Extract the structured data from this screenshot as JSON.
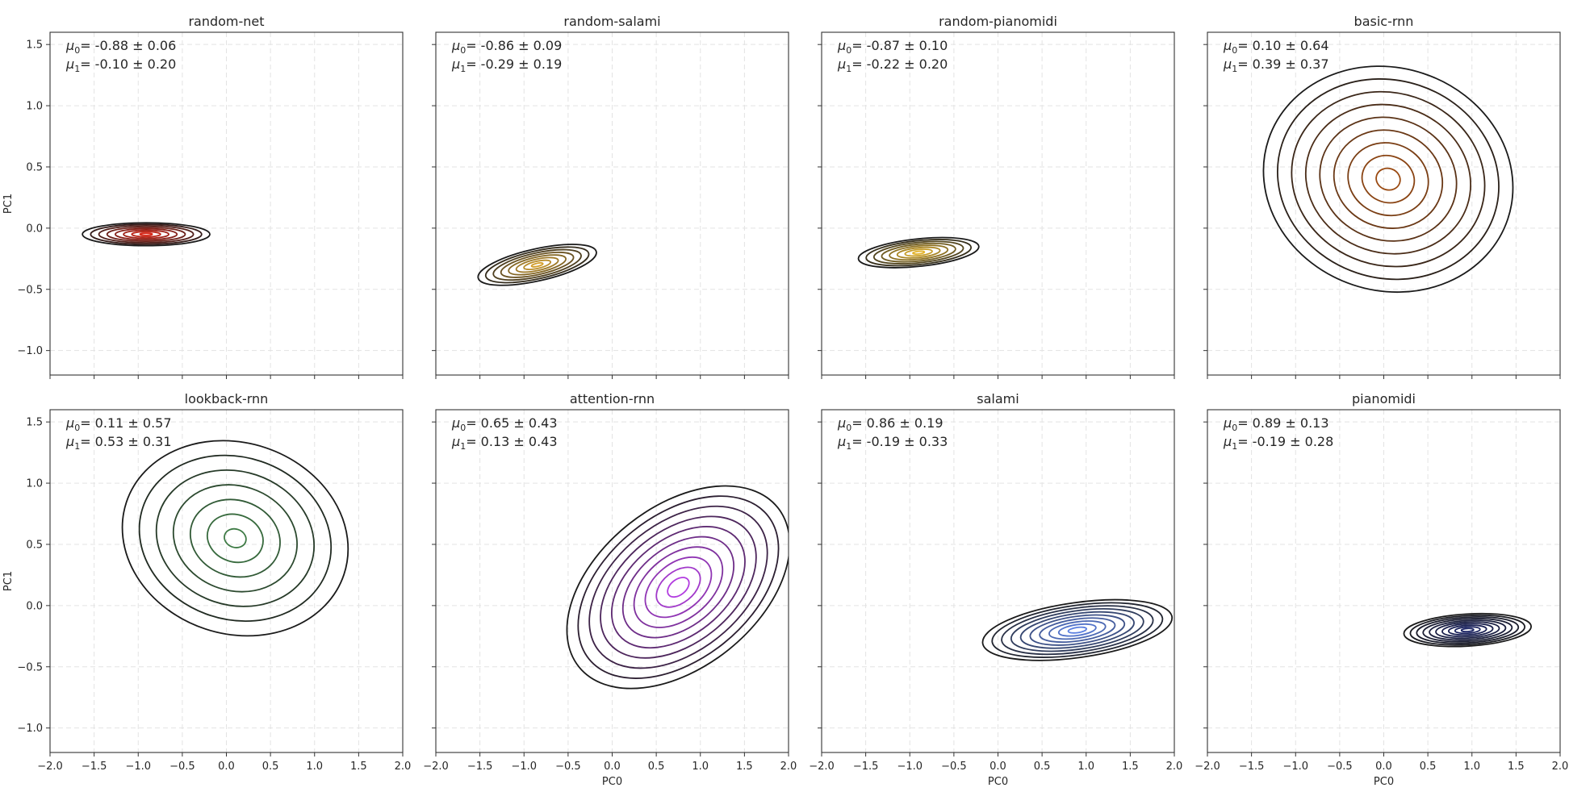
{
  "chart_data": [
    {
      "type": "contour",
      "title": "random-net",
      "xlabel": "",
      "ylabel": "PC1",
      "xlim": [
        -2.0,
        2.0
      ],
      "ylim": [
        -1.2,
        1.6
      ],
      "xticks": [],
      "yticks": [
        "−1.0",
        "−0.5",
        "0.0",
        "0.5",
        "1.0",
        "1.5"
      ],
      "stats": {
        "mu0_label": "μ0 =",
        "mu0": "-0.88 ± 0.06",
        "mu1_label": "μ1 =",
        "mu1": "-0.10 ± 0.20"
      },
      "density": {
        "mean": [
          -0.91,
          -0.05
        ],
        "std": [
          0.05,
          0.2
        ],
        "rho": 0,
        "levels": 8,
        "hi_color": "#d62718",
        "lo_color": "#1a1a1a"
      }
    },
    {
      "type": "contour",
      "title": "random-salami",
      "xlabel": "",
      "ylabel": "",
      "xlim": [
        -2.0,
        2.0
      ],
      "ylim": [
        -1.2,
        1.6
      ],
      "xticks": [],
      "yticks": [],
      "stats": {
        "mu0_label": "μ0 =",
        "mu0": "-0.86 ± 0.09",
        "mu1_label": "μ1 =",
        "mu1": "-0.29 ± 0.19"
      },
      "density": {
        "mean": [
          -0.85,
          -0.3
        ],
        "std": [
          0.07,
          0.19
        ],
        "rho": -0.55,
        "levels": 8,
        "hi_color": "#d4a02e",
        "lo_color": "#1a1a1a"
      }
    },
    {
      "type": "contour",
      "title": "random-pianomidi",
      "xlabel": "",
      "ylabel": "",
      "xlim": [
        -2.0,
        2.0
      ],
      "ylim": [
        -1.2,
        1.6
      ],
      "xticks": [],
      "yticks": [],
      "stats": {
        "mu0_label": "μ0 =",
        "mu0": "-0.87 ± 0.10",
        "mu1_label": "μ1 =",
        "mu1": "-0.22 ± 0.20"
      },
      "density": {
        "mean": [
          -0.9,
          -0.2
        ],
        "std": [
          0.06,
          0.19
        ],
        "rho": -0.3,
        "levels": 8,
        "hi_color": "#e3b32a",
        "lo_color": "#1a1a1a"
      }
    },
    {
      "type": "contour",
      "title": "basic-rnn",
      "xlabel": "",
      "ylabel": "",
      "xlim": [
        -2.0,
        2.0
      ],
      "ylim": [
        -1.2,
        1.6
      ],
      "xticks": [],
      "yticks": [],
      "stats": {
        "mu0_label": "μ0 =",
        "mu0": "0.10 ± 0.64",
        "mu1_label": "μ1 =",
        "mu1": "0.39 ± 0.37"
      },
      "density": {
        "mean": [
          0.05,
          0.4
        ],
        "std": [
          0.55,
          0.35
        ],
        "rho": -0.35,
        "levels": 9,
        "hi_color": "#9a4a12",
        "lo_color": "#1a1a1a"
      }
    },
    {
      "type": "contour",
      "title": "lookback-rnn",
      "xlabel": "",
      "ylabel": "PC1",
      "xlim": [
        -2.0,
        2.0
      ],
      "ylim": [
        -1.2,
        1.6
      ],
      "xticks": [],
      "yticks": [
        "−1.0",
        "−0.5",
        "0.0",
        "0.5",
        "1.0",
        "1.5"
      ],
      "stats": {
        "mu0_label": "μ0 =",
        "mu0": "0.11 ± 0.57",
        "mu1_label": "μ1 =",
        "mu1": "0.53 ± 0.31"
      },
      "density": {
        "mean": [
          0.1,
          0.55
        ],
        "std": [
          0.5,
          0.3
        ],
        "rho": -0.4,
        "levels": 7,
        "hi_color": "#3d7a44",
        "lo_color": "#1a1a1a"
      }
    },
    {
      "type": "contour",
      "title": "attention-rnn",
      "xlabel": "PC0",
      "ylabel": "",
      "xlim": [
        -2.0,
        2.0
      ],
      "ylim": [
        -1.2,
        1.6
      ],
      "xticks": [],
      "yticks": [],
      "stats": {
        "mu0_label": "μ0 =",
        "mu0": "0.65 ± 0.43",
        "mu1_label": "μ1 =",
        "mu1": "0.13 ± 0.43"
      },
      "density": {
        "mean": [
          0.75,
          0.15
        ],
        "std": [
          0.35,
          0.4
        ],
        "rho": -0.6,
        "levels": 10,
        "hi_color": "#b23de0",
        "lo_color": "#1a1a1a"
      }
    },
    {
      "type": "contour",
      "title": "salami",
      "xlabel": "PC0",
      "ylabel": "",
      "xlim": [
        -2.0,
        2.0
      ],
      "ylim": [
        -1.2,
        1.6
      ],
      "xticks": [],
      "yticks": [],
      "stats": {
        "mu0_label": "μ0 =",
        "mu0": "0.86 ± 0.19",
        "mu1_label": "μ1 =",
        "mu1": "-0.19 ± 0.33"
      },
      "density": {
        "mean": [
          0.9,
          -0.2
        ],
        "std": [
          0.12,
          0.3
        ],
        "rho": -0.3,
        "levels": 10,
        "hi_color": "#5a7fe0",
        "lo_color": "#1a1a1a"
      }
    },
    {
      "type": "contour",
      "title": "pianomidi",
      "xlabel": "PC0",
      "ylabel": "",
      "xlim": [
        -2.0,
        2.0
      ],
      "ylim": [
        -1.2,
        1.6
      ],
      "xticks": [],
      "yticks": [],
      "stats": {
        "mu0_label": "μ0 =",
        "mu0": "0.89 ± 0.13",
        "mu1_label": "μ1 =",
        "mu1": "-0.19 ± 0.28"
      },
      "density": {
        "mean": [
          0.95,
          -0.2
        ],
        "std": [
          0.07,
          0.2
        ],
        "rho": -0.15,
        "levels": 10,
        "hi_color": "#1c2566",
        "lo_color": "#1a1a1a"
      }
    }
  ],
  "bottom_xticks": [
    "−2.0",
    "−1.5",
    "−1.0",
    "−0.5",
    "0.0",
    "0.5",
    "1.0",
    "1.5",
    "2.0"
  ]
}
